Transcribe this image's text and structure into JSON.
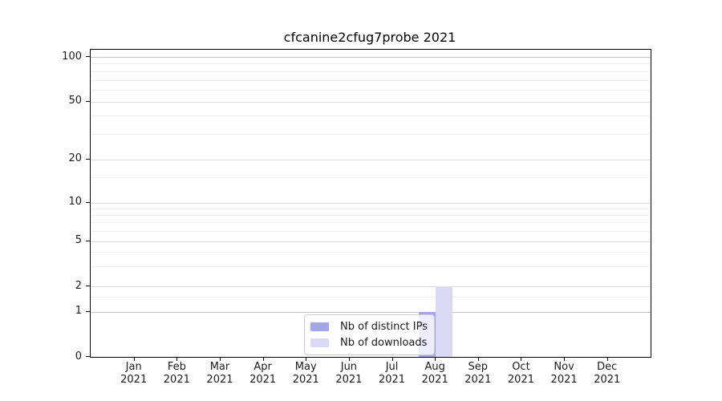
{
  "chart_data": {
    "type": "bar",
    "title": "cfcanine2cfug7probe 2021",
    "categories": [
      {
        "month": "Jan",
        "year": "2021"
      },
      {
        "month": "Feb",
        "year": "2021"
      },
      {
        "month": "Mar",
        "year": "2021"
      },
      {
        "month": "Apr",
        "year": "2021"
      },
      {
        "month": "May",
        "year": "2021"
      },
      {
        "month": "Jun",
        "year": "2021"
      },
      {
        "month": "Jul",
        "year": "2021"
      },
      {
        "month": "Aug",
        "year": "2021"
      },
      {
        "month": "Sep",
        "year": "2021"
      },
      {
        "month": "Oct",
        "year": "2021"
      },
      {
        "month": "Nov",
        "year": "2021"
      },
      {
        "month": "Dec",
        "year": "2021"
      }
    ],
    "series": [
      {
        "name": "Nb of distinct IPs",
        "color": "#a5a5ec",
        "values": [
          0,
          0,
          0,
          0,
          0,
          0,
          0,
          1,
          0,
          0,
          0,
          0
        ]
      },
      {
        "name": "Nb of downloads",
        "color": "#d9d9f6",
        "values": [
          0,
          0,
          0,
          0,
          0,
          0,
          0,
          2,
          0,
          0,
          0,
          0
        ]
      }
    ],
    "xlabel": "",
    "ylabel": "",
    "yaxis": {
      "scale": "symlog",
      "ticks": [
        0,
        1,
        2,
        5,
        10,
        20,
        50,
        100
      ],
      "ylim": [
        0,
        105
      ]
    },
    "grid": {
      "horizontal": true,
      "vertical": false
    },
    "legend": {
      "position": "lower-center-inside",
      "entries": [
        "Nb of distinct IPs",
        "Nb of downloads"
      ]
    }
  }
}
